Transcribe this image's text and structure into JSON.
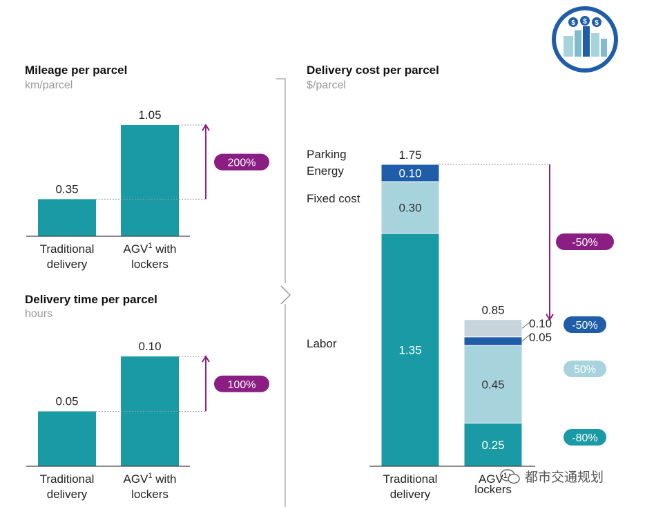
{
  "colors": {
    "teal": "#1a9aa5",
    "light_blue": "#a7d3dc",
    "dark_blue": "#1f5da8",
    "parking_grey": "#c8d4dc",
    "purple": "#8a1e82",
    "pill_dark_blue": "#1f5da8",
    "pill_light": "#a7d3dc",
    "pill_teal": "#1a9aa5",
    "axis": "#444444",
    "divider": "#999999"
  },
  "chart_data": [
    {
      "type": "bar",
      "title": "Mileage per parcel",
      "unit": "km/parcel",
      "categories": [
        "Traditional\ndelivery",
        "AGV¹ with\nlockers"
      ],
      "values": [
        0.35,
        1.05
      ],
      "value_labels": [
        "0.35",
        "1.05"
      ],
      "ylim": [
        0,
        1.05
      ],
      "change_label": "200%",
      "change_color": "#8a1e82"
    },
    {
      "type": "bar",
      "title": "Delivery time per parcel",
      "unit": "hours",
      "categories": [
        "Traditional\ndelivery",
        "AGV¹ with\nlockers"
      ],
      "values": [
        0.05,
        0.1
      ],
      "value_labels": [
        "0.05",
        "0.10"
      ],
      "ylim": [
        0,
        0.1
      ],
      "change_label": "100%",
      "change_color": "#8a1e82"
    },
    {
      "type": "bar",
      "stacked": true,
      "title": "Delivery cost per parcel",
      "unit": "$/parcel",
      "categories": [
        "Traditional\ndelivery",
        "AGV¹\nlockers"
      ],
      "totals": [
        1.75,
        0.85
      ],
      "total_labels": [
        "1.75",
        "0.85"
      ],
      "ylim": [
        0,
        1.75
      ],
      "series": [
        {
          "name": "Labor",
          "values": [
            1.35,
            0.25
          ],
          "labels": [
            "1.35",
            "0.25"
          ],
          "change": "-80%",
          "color": "#1a9aa5",
          "pill_color": "#1a9aa5",
          "pill_text_color": "#ffffff"
        },
        {
          "name": "Fixed cost",
          "values": [
            0.3,
            0.45
          ],
          "labels": [
            "0.30",
            "0.45"
          ],
          "change": "50%",
          "color": "#a7d3dc",
          "pill_color": "#a7d3dc",
          "pill_text_color": "#ffffff"
        },
        {
          "name": "Energy",
          "values": [
            0.1,
            0.05
          ],
          "labels": [
            "0.10",
            "0.05"
          ],
          "change": "-50%",
          "color": "#1f5da8",
          "pill_color": "#1f5da8",
          "pill_text_color": "#ffffff"
        },
        {
          "name": "Parking",
          "values": [
            0.0,
            0.1
          ],
          "labels": [
            "",
            "0.10"
          ],
          "change": "",
          "color": "#c8d4dc",
          "pill_color": "",
          "pill_text_color": ""
        }
      ],
      "total_change": "-50%",
      "total_change_color": "#8a1e82"
    }
  ],
  "watermark": {
    "text": "都市交通规划"
  }
}
